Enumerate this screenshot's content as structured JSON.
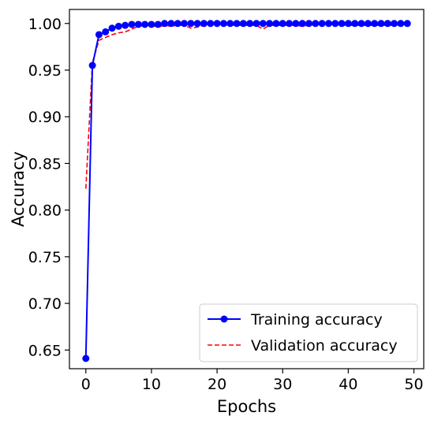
{
  "chart_data": {
    "type": "line",
    "xlabel": "Epochs",
    "ylabel": "Accuracy",
    "xlim": [
      -2.5,
      51.5
    ],
    "ylim": [
      0.63,
      1.015
    ],
    "xticks": [
      0,
      10,
      20,
      30,
      40,
      50
    ],
    "yticks": [
      0.65,
      0.7,
      0.75,
      0.8,
      0.85,
      0.9,
      0.95,
      1.0
    ],
    "xtick_labels": [
      "0",
      "10",
      "20",
      "30",
      "40",
      "50"
    ],
    "ytick_labels": [
      "0.65",
      "0.70",
      "0.75",
      "0.80",
      "0.85",
      "0.90",
      "0.95",
      "1.00"
    ],
    "grid": false,
    "legend": "lower-right",
    "x": [
      0,
      1,
      2,
      3,
      4,
      5,
      6,
      7,
      8,
      9,
      10,
      11,
      12,
      13,
      14,
      15,
      16,
      17,
      18,
      19,
      20,
      21,
      22,
      23,
      24,
      25,
      26,
      27,
      28,
      29,
      30,
      31,
      32,
      33,
      34,
      35,
      36,
      37,
      38,
      39,
      40,
      41,
      42,
      43,
      44,
      45,
      46,
      47,
      48,
      49
    ],
    "series": [
      {
        "name": "Training accuracy",
        "color": "#0000ff",
        "style": "solid",
        "marker": "circle",
        "values": [
          0.641,
          0.955,
          0.988,
          0.991,
          0.995,
          0.997,
          0.998,
          0.999,
          0.999,
          0.999,
          0.999,
          0.999,
          1.0,
          1.0,
          1.0,
          1.0,
          1.0,
          1.0,
          1.0,
          1.0,
          1.0,
          1.0,
          1.0,
          1.0,
          1.0,
          1.0,
          1.0,
          1.0,
          1.0,
          1.0,
          1.0,
          1.0,
          1.0,
          1.0,
          1.0,
          1.0,
          1.0,
          1.0,
          1.0,
          1.0,
          1.0,
          1.0,
          1.0,
          1.0,
          1.0,
          1.0,
          1.0,
          1.0,
          1.0,
          1.0
        ]
      },
      {
        "name": "Validation accuracy",
        "color": "#ff0000",
        "style": "dashed",
        "marker": "none",
        "values": [
          0.823,
          0.958,
          0.982,
          0.985,
          0.988,
          0.99,
          0.991,
          0.994,
          0.997,
          0.998,
          0.998,
          0.996,
          0.998,
          0.997,
          0.998,
          0.998,
          0.995,
          0.996,
          0.998,
          0.998,
          0.998,
          0.998,
          0.998,
          0.998,
          0.998,
          0.998,
          0.998,
          0.994,
          0.998,
          0.998,
          0.998,
          0.998,
          0.998,
          0.997,
          0.998,
          0.998,
          0.998,
          0.998,
          0.998,
          0.998,
          0.998,
          0.998,
          0.998,
          0.998,
          0.998,
          0.998,
          0.998,
          0.998,
          0.998,
          0.998
        ]
      }
    ]
  }
}
